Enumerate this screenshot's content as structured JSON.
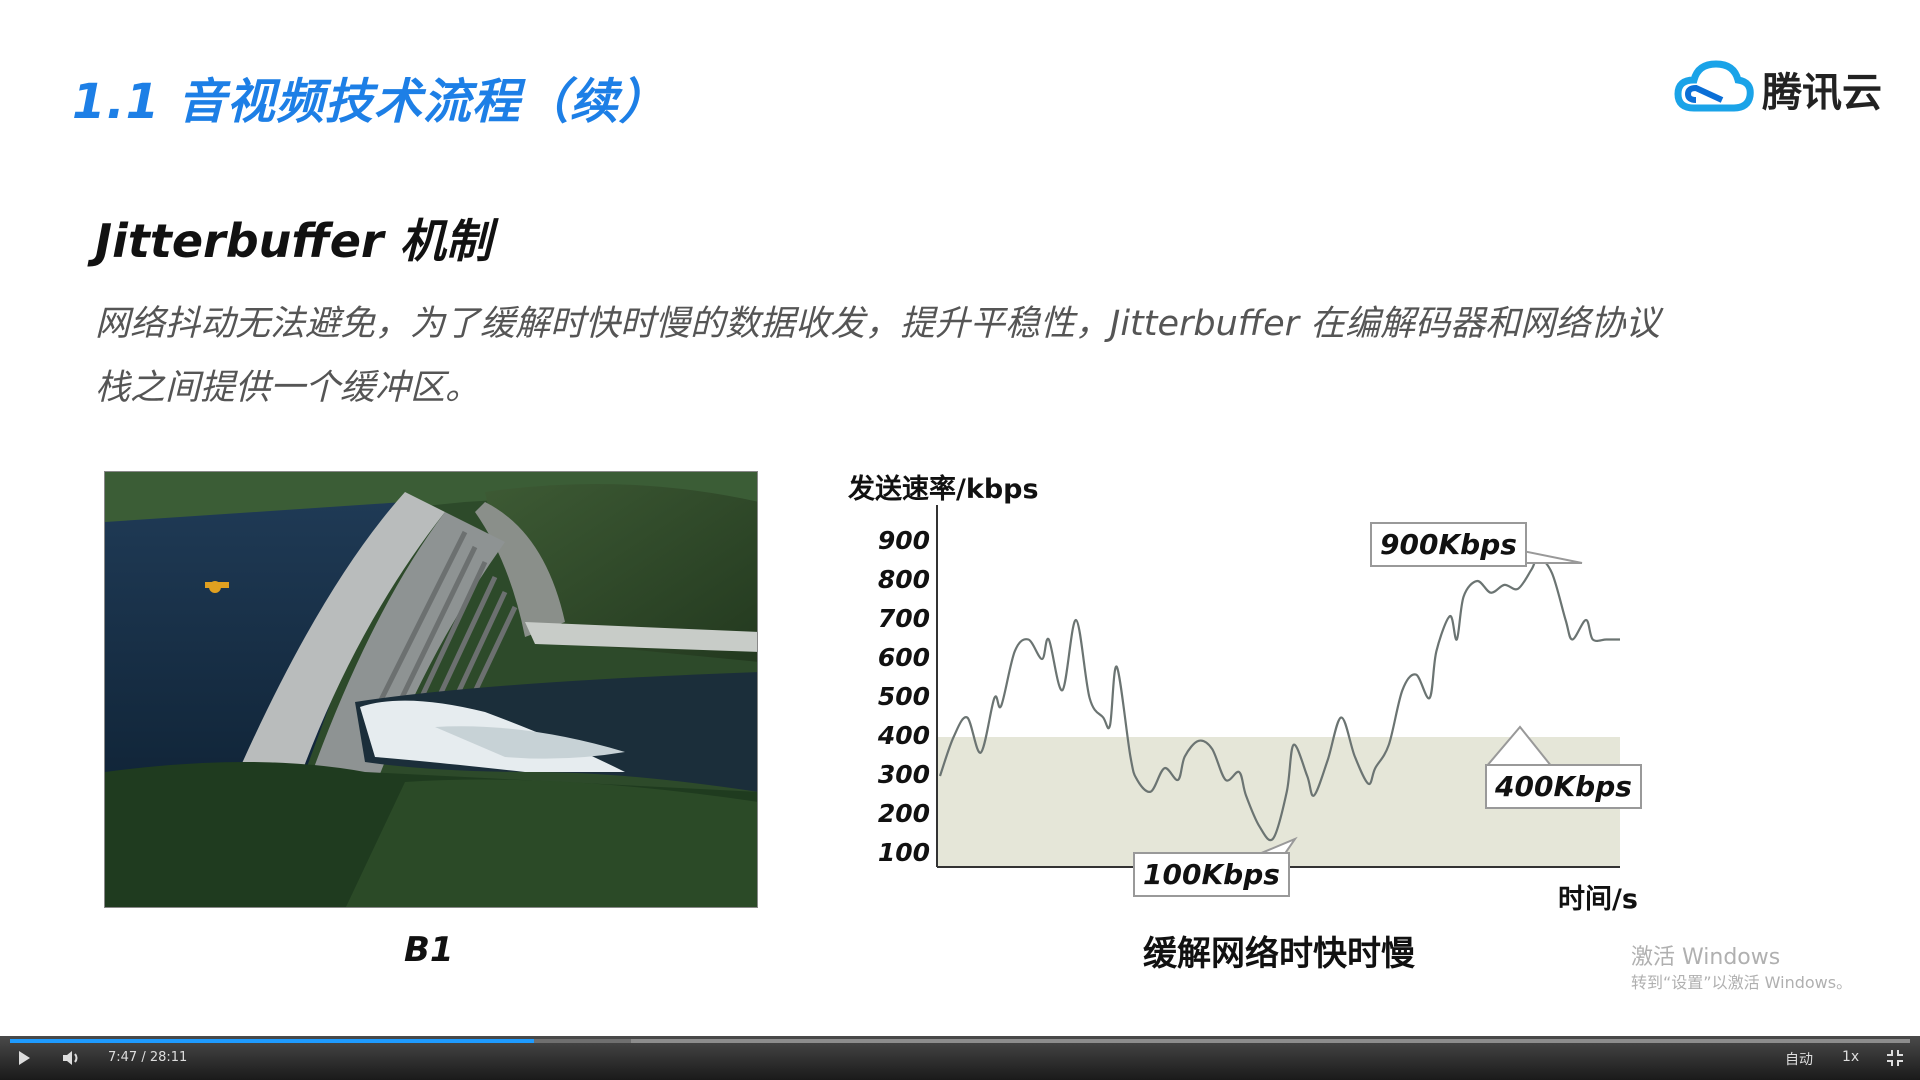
{
  "slide": {
    "title": "1.1 音视频技术流程（续）",
    "logo_text": "腾讯云",
    "subtitle": "Jitterbuffer 机制",
    "paragraph_line1": "网络抖动无法避免，为了缓解时快时慢的数据收发，提升平稳性，Jitterbuffer 在编解码器和网络协议",
    "paragraph_line2": "栈之间提供一个缓冲区。",
    "photo_caption": "B1",
    "chart_caption": "缓解网络时快时慢"
  },
  "chart_data": {
    "type": "line",
    "ylabel": "发送速率/kbps",
    "xlabel": "时间/s",
    "yticks": [
      "900",
      "800",
      "700",
      "600",
      "500",
      "400",
      "300",
      "200",
      "100"
    ],
    "ylim": [
      100,
      900
    ],
    "buffer_band": [
      0,
      400
    ],
    "annotations": [
      "900Kbps",
      "400Kbps",
      "100Kbps"
    ],
    "series": [
      {
        "x": [
          0,
          2,
          4,
          6,
          8,
          9,
          11,
          13,
          15,
          16,
          18,
          20,
          22,
          24,
          25,
          26,
          28,
          29,
          31,
          33,
          35,
          36,
          38,
          40,
          42,
          44,
          45,
          47,
          49,
          51,
          52,
          54,
          55,
          57,
          59,
          61,
          63,
          64,
          66,
          68,
          70,
          72,
          73,
          75,
          76,
          77,
          79,
          81,
          83,
          85,
          87,
          88,
          90,
          92,
          93,
          95,
          96,
          98,
          100
        ],
        "values": [
          300,
          400,
          450,
          360,
          500,
          480,
          620,
          650,
          600,
          650,
          520,
          700,
          500,
          450,
          430,
          580,
          350,
          290,
          260,
          320,
          290,
          350,
          390,
          370,
          290,
          310,
          250,
          170,
          140,
          260,
          380,
          300,
          250,
          340,
          450,
          350,
          280,
          320,
          380,
          520,
          560,
          500,
          620,
          710,
          650,
          760,
          800,
          770,
          790,
          780,
          830,
          860,
          820,
          700,
          650,
          700,
          650,
          650,
          650
        ]
      }
    ]
  },
  "watermark": {
    "title": "激活 Windows",
    "subtitle": "转到“设置”以激活 Windows。"
  },
  "player": {
    "time": "7:47 / 28:11",
    "quality": "自动",
    "speed": "1x",
    "progress_fraction": 0.276,
    "buffered_fraction": 0.327
  }
}
